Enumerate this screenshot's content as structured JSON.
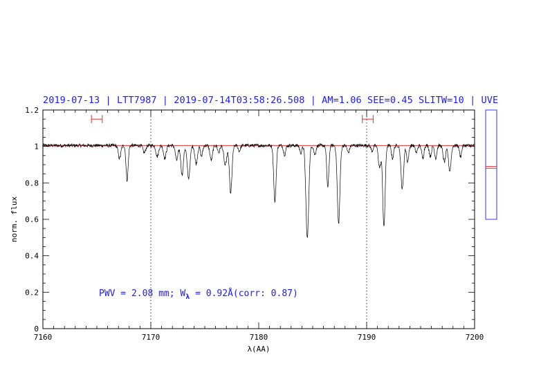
{
  "header": {
    "title": "2019-07-13 | LTT7987 | 2019-07-14T03:58:26.508 | AM=1.06  SEE=0.45  SLITW=10 | UVE"
  },
  "annotation": {
    "pwv_text": "PWV = 2.08 mm; W",
    "w_subscript": "λ",
    "w_text": " = 0.92Å(corr: 0.87)"
  },
  "colors": {
    "title": "#1a1aff",
    "fit_line": "#e03030",
    "range_marker": "#e03030",
    "side_box": "#3333ff",
    "spectrum": "#000000"
  },
  "chart_data": {
    "type": "line",
    "xlabel": "λ(AA)",
    "ylabel": "norm. flux",
    "xlim": [
      7160,
      7200
    ],
    "ylim": [
      0,
      1.2
    ],
    "x_ticks": [
      7160,
      7170,
      7180,
      7190,
      7200
    ],
    "x_tick_labels": [
      "7160",
      "7170",
      "7180",
      "7190",
      "7200"
    ],
    "y_ticks": [
      0,
      0.2,
      0.4,
      0.6,
      0.8,
      1,
      1.2
    ],
    "y_tick_labels": [
      "0",
      "0.2",
      "0.4",
      "0.6",
      "0.8",
      "1",
      "1.2"
    ],
    "vertical_dotted_lines": [
      7170,
      7190
    ],
    "continuum_level": 1.005,
    "range_markers": [
      {
        "x_start": 7164.5,
        "x_end": 7165.5,
        "y": 1.15
      },
      {
        "x_start": 7189.6,
        "x_end": 7190.6,
        "y": 1.15
      }
    ],
    "noise_amplitude": 0.006,
    "absorption_lines": [
      {
        "center": 7167.1,
        "depth": 0.07,
        "width": 0.12
      },
      {
        "center": 7167.8,
        "depth": 0.19,
        "width": 0.1
      },
      {
        "center": 7169.4,
        "depth": 0.04,
        "width": 0.12
      },
      {
        "center": 7170.6,
        "depth": 0.06,
        "width": 0.12
      },
      {
        "center": 7171.3,
        "depth": 0.07,
        "width": 0.12
      },
      {
        "center": 7172.4,
        "depth": 0.08,
        "width": 0.12
      },
      {
        "center": 7172.9,
        "depth": 0.16,
        "width": 0.12
      },
      {
        "center": 7173.5,
        "depth": 0.18,
        "width": 0.13
      },
      {
        "center": 7174.2,
        "depth": 0.1,
        "width": 0.12
      },
      {
        "center": 7174.7,
        "depth": 0.06,
        "width": 0.1
      },
      {
        "center": 7175.6,
        "depth": 0.08,
        "width": 0.12
      },
      {
        "center": 7176.3,
        "depth": 0.04,
        "width": 0.1
      },
      {
        "center": 7176.9,
        "depth": 0.11,
        "width": 0.13
      },
      {
        "center": 7177.4,
        "depth": 0.26,
        "width": 0.12
      },
      {
        "center": 7178.2,
        "depth": 0.03,
        "width": 0.1
      },
      {
        "center": 7181.5,
        "depth": 0.31,
        "width": 0.11
      },
      {
        "center": 7182.4,
        "depth": 0.05,
        "width": 0.1
      },
      {
        "center": 7183.9,
        "depth": 0.04,
        "width": 0.1
      },
      {
        "center": 7184.5,
        "depth": 0.51,
        "width": 0.13
      },
      {
        "center": 7185.2,
        "depth": 0.05,
        "width": 0.1
      },
      {
        "center": 7186.4,
        "depth": 0.23,
        "width": 0.1
      },
      {
        "center": 7187.4,
        "depth": 0.43,
        "width": 0.12
      },
      {
        "center": 7188.3,
        "depth": 0.04,
        "width": 0.1
      },
      {
        "center": 7190.5,
        "depth": 0.03,
        "width": 0.1
      },
      {
        "center": 7191.2,
        "depth": 0.12,
        "width": 0.12
      },
      {
        "center": 7191.6,
        "depth": 0.45,
        "width": 0.11
      },
      {
        "center": 7192.4,
        "depth": 0.07,
        "width": 0.1
      },
      {
        "center": 7193.3,
        "depth": 0.24,
        "width": 0.12
      },
      {
        "center": 7193.8,
        "depth": 0.09,
        "width": 0.1
      },
      {
        "center": 7194.6,
        "depth": 0.04,
        "width": 0.1
      },
      {
        "center": 7195.2,
        "depth": 0.07,
        "width": 0.1
      },
      {
        "center": 7195.9,
        "depth": 0.06,
        "width": 0.1
      },
      {
        "center": 7196.4,
        "depth": 0.07,
        "width": 0.1
      },
      {
        "center": 7197.2,
        "depth": 0.09,
        "width": 0.12
      },
      {
        "center": 7197.7,
        "depth": 0.14,
        "width": 0.12
      },
      {
        "center": 7198.7,
        "depth": 0.06,
        "width": 0.1
      }
    ],
    "side_panel": {
      "type": "range_box",
      "marker_levels": [
        0.88,
        0.89
      ]
    }
  }
}
